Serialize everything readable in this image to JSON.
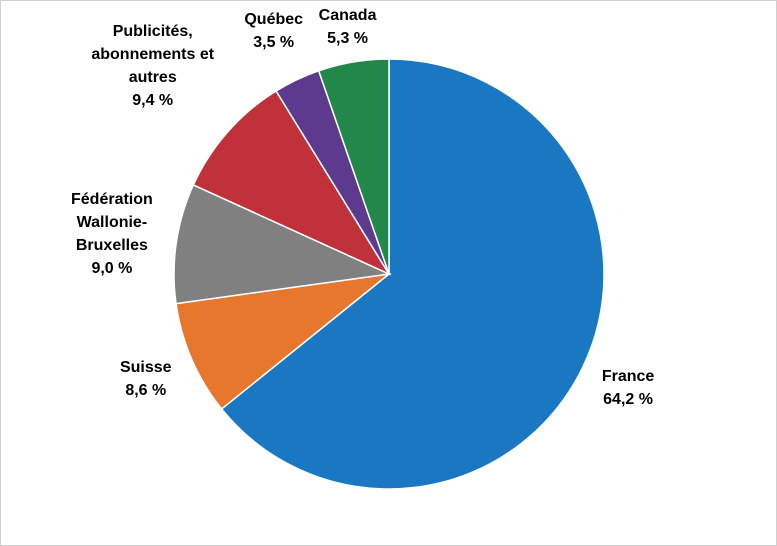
{
  "chart_data": {
    "type": "pie",
    "categories": [
      "France",
      "Suisse",
      "Fédération Wallonie-Bruxelles",
      "Publicités, abonnements et autres",
      "Québec",
      "Canada"
    ],
    "values": [
      64.2,
      8.6,
      9.0,
      9.4,
      3.5,
      5.3
    ],
    "value_labels": [
      "64,2 %",
      "8,6 %",
      "9,0 %",
      "9,4 %",
      "3,5 %",
      "5,3 %"
    ],
    "colors": [
      "#1a78c2",
      "#e8772e",
      "#808080",
      "#c0313a",
      "#5c3b8f",
      "#21884a"
    ]
  }
}
